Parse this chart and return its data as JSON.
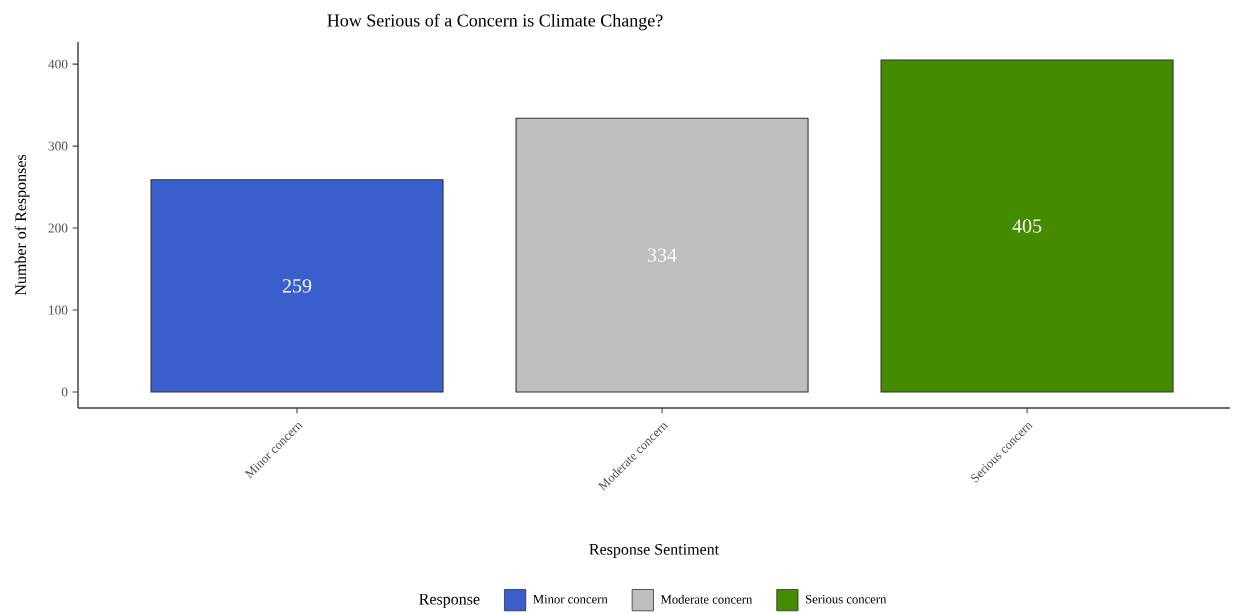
{
  "chart_data": {
    "type": "bar",
    "title": "How Serious of a Concern is Climate Change?",
    "xlabel": "Response Sentiment",
    "ylabel": "Number of Responses",
    "legend_title": "Response",
    "categories": [
      "Minor concern",
      "Moderate concern",
      "Serious concern"
    ],
    "series": [
      {
        "name": "Minor concern",
        "color": "#3a5fcd",
        "values": [
          259,
          null,
          null
        ]
      },
      {
        "name": "Moderate concern",
        "color": "#bebebe",
        "values": [
          null,
          334,
          null
        ]
      },
      {
        "name": "Serious concern",
        "color": "#458b00",
        "values": [
          null,
          null,
          405
        ]
      }
    ],
    "ylim": [
      -19.5,
      427
    ],
    "yticks": [
      0,
      100,
      200,
      300,
      400
    ],
    "data_labels": true,
    "legend": "bottom",
    "grid": false
  }
}
